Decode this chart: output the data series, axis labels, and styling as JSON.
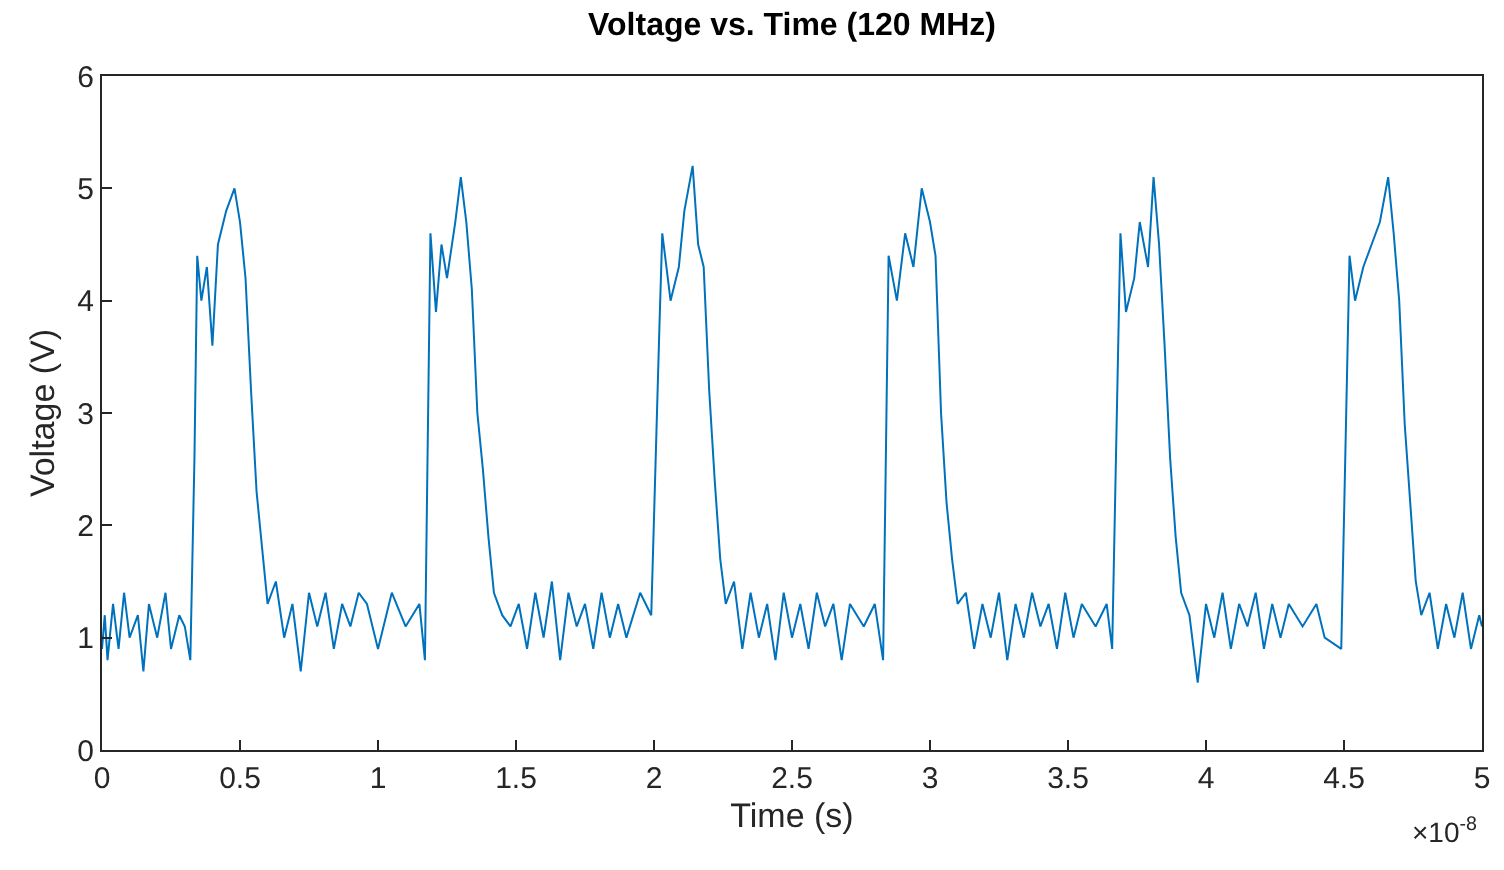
{
  "chart_data": {
    "type": "line",
    "title": "Voltage vs. Time (120 MHz)",
    "xlabel": "Time (s)",
    "ylabel": "Voltage (V)",
    "annotations": [
      "×10$^{-8}$"
    ],
    "xlim": [
      0,
      5
    ],
    "ylim": [
      0,
      6
    ],
    "xticks": [
      0,
      0.5,
      1,
      1.5,
      2,
      2.5,
      3,
      3.5,
      4,
      4.5,
      5
    ],
    "yticks": [
      0,
      1,
      2,
      3,
      4,
      5,
      6
    ],
    "marker": "none",
    "line_style": "solid",
    "series": [
      {
        "color": "#0072bd",
        "x": [
          0,
          0.01,
          0.02,
          0.04,
          0.06,
          0.08,
          0.1,
          0.13,
          0.15,
          0.17,
          0.2,
          0.23,
          0.25,
          0.28,
          0.3,
          0.32,
          0.335,
          0.345,
          0.36,
          0.38,
          0.4,
          0.42,
          0.45,
          0.48,
          0.5,
          0.52,
          0.54,
          0.56,
          0.58,
          0.6,
          0.63,
          0.66,
          0.69,
          0.72,
          0.75,
          0.78,
          0.81,
          0.84,
          0.87,
          0.9,
          0.93,
          0.96,
          1.0,
          1.05,
          1.1,
          1.15,
          1.17,
          1.19,
          1.21,
          1.23,
          1.25,
          1.28,
          1.3,
          1.32,
          1.34,
          1.36,
          1.38,
          1.4,
          1.42,
          1.45,
          1.48,
          1.51,
          1.54,
          1.57,
          1.6,
          1.63,
          1.66,
          1.69,
          1.72,
          1.75,
          1.78,
          1.81,
          1.84,
          1.87,
          1.9,
          1.95,
          1.99,
          2.02,
          2.03,
          2.06,
          2.09,
          2.11,
          2.14,
          2.16,
          2.18,
          2.2,
          2.22,
          2.24,
          2.26,
          2.29,
          2.32,
          2.35,
          2.38,
          2.41,
          2.44,
          2.47,
          2.5,
          2.53,
          2.56,
          2.59,
          2.62,
          2.65,
          2.68,
          2.71,
          2.76,
          2.8,
          2.83,
          2.85,
          2.88,
          2.91,
          2.94,
          2.97,
          3.0,
          3.02,
          3.04,
          3.06,
          3.08,
          3.1,
          3.13,
          3.16,
          3.19,
          3.22,
          3.25,
          3.28,
          3.31,
          3.34,
          3.37,
          3.4,
          3.43,
          3.46,
          3.49,
          3.52,
          3.55,
          3.6,
          3.64,
          3.66,
          3.69,
          3.71,
          3.74,
          3.76,
          3.79,
          3.81,
          3.83,
          3.85,
          3.87,
          3.89,
          3.91,
          3.94,
          3.97,
          4.0,
          4.03,
          4.06,
          4.09,
          4.12,
          4.15,
          4.18,
          4.21,
          4.24,
          4.27,
          4.3,
          4.35,
          4.4,
          4.43,
          4.49,
          4.52,
          4.54,
          4.57,
          4.6,
          4.63,
          4.66,
          4.68,
          4.7,
          4.72,
          4.74,
          4.76,
          4.78,
          4.81,
          4.84,
          4.87,
          4.9,
          4.93,
          4.96,
          4.99,
          5.0
        ],
        "values": [
          0.9,
          1.2,
          0.8,
          1.3,
          0.9,
          1.4,
          1.0,
          1.2,
          0.7,
          1.3,
          1.0,
          1.4,
          0.9,
          1.2,
          1.1,
          0.8,
          2.6,
          4.4,
          4.0,
          4.3,
          3.6,
          4.5,
          4.8,
          5.0,
          4.7,
          4.2,
          3.2,
          2.3,
          1.8,
          1.3,
          1.5,
          1.0,
          1.3,
          0.7,
          1.4,
          1.1,
          1.4,
          0.9,
          1.3,
          1.1,
          1.4,
          1.3,
          0.9,
          1.4,
          1.1,
          1.3,
          0.8,
          4.6,
          3.9,
          4.5,
          4.2,
          4.7,
          5.1,
          4.7,
          4.1,
          3.0,
          2.5,
          1.9,
          1.4,
          1.2,
          1.1,
          1.3,
          0.9,
          1.4,
          1.0,
          1.5,
          0.8,
          1.4,
          1.1,
          1.3,
          0.9,
          1.4,
          1.0,
          1.3,
          1.0,
          1.4,
          1.2,
          3.8,
          4.6,
          4.0,
          4.3,
          4.8,
          5.2,
          4.5,
          4.3,
          3.2,
          2.4,
          1.7,
          1.3,
          1.5,
          0.9,
          1.4,
          1.0,
          1.3,
          0.8,
          1.4,
          1.0,
          1.3,
          0.9,
          1.4,
          1.1,
          1.3,
          0.8,
          1.3,
          1.1,
          1.3,
          0.8,
          4.4,
          4.0,
          4.6,
          4.3,
          5.0,
          4.7,
          4.4,
          3.0,
          2.2,
          1.7,
          1.3,
          1.4,
          0.9,
          1.3,
          1.0,
          1.4,
          0.8,
          1.3,
          1.0,
          1.4,
          1.1,
          1.3,
          0.9,
          1.4,
          1.0,
          1.3,
          1.1,
          1.3,
          0.9,
          4.6,
          3.9,
          4.2,
          4.7,
          4.3,
          5.1,
          4.5,
          3.6,
          2.6,
          1.9,
          1.4,
          1.2,
          0.6,
          1.3,
          1.0,
          1.4,
          0.9,
          1.3,
          1.1,
          1.4,
          0.9,
          1.3,
          1.0,
          1.3,
          1.1,
          1.3,
          1.0,
          0.9,
          4.4,
          4.0,
          4.3,
          4.5,
          4.7,
          5.1,
          4.6,
          4.0,
          2.9,
          2.2,
          1.5,
          1.2,
          1.4,
          0.9,
          1.3,
          1.0,
          1.4,
          0.9,
          1.2,
          1.1
        ]
      }
    ]
  }
}
